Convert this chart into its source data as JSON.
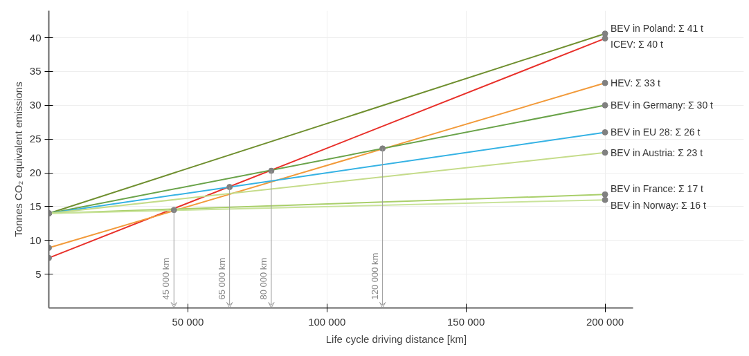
{
  "chart_data": {
    "type": "line",
    "xlabel": "Life cycle driving distance [km]",
    "ylabel": "Tonnes CO₂ equivalent emissions",
    "x": [
      0,
      200000
    ],
    "xlim": [
      0,
      210000
    ],
    "ylim": [
      0,
      44
    ],
    "xticks": [
      {
        "value": 50000,
        "label": "50 000"
      },
      {
        "value": 100000,
        "label": "100 000"
      },
      {
        "value": 150000,
        "label": "150 000"
      },
      {
        "value": 200000,
        "label": "200 000"
      }
    ],
    "yticks": [
      5,
      10,
      15,
      20,
      25,
      30,
      35,
      40
    ],
    "grid": true,
    "marker": "circle",
    "line_style": "solid",
    "series": [
      {
        "name": "BEV in Poland: Σ 41 t",
        "color": "#6f8f2f",
        "values": [
          14,
          40.6
        ]
      },
      {
        "name": "ICEV: Σ 40 t",
        "color": "#e8302a",
        "values": [
          7.4,
          39.9
        ]
      },
      {
        "name": "HEV: Σ 33 t",
        "color": "#f29a3a",
        "values": [
          8.9,
          33.3
        ]
      },
      {
        "name": "BEV in Germany: Σ 30 t",
        "color": "#6aa34a",
        "values": [
          14,
          30
        ]
      },
      {
        "name": "BEV in EU 28: Σ 26 t",
        "color": "#35b2e4",
        "values": [
          14,
          26
        ]
      },
      {
        "name": "BEV in Austria: Σ 23 t",
        "color": "#c5dc8a",
        "values": [
          14,
          23
        ]
      },
      {
        "name": "BEV in France: Σ 17 t",
        "color": "#a9cf6a",
        "values": [
          14,
          16.8
        ]
      },
      {
        "name": "BEV in Norway: Σ 16 t",
        "color": "#c9e39a",
        "values": [
          14,
          16
        ]
      }
    ],
    "annotations": [
      {
        "text": "45 000 km",
        "x": 45000,
        "y": 14.5
      },
      {
        "text": "65 000 km",
        "x": 65000,
        "y": 17.9
      },
      {
        "text": "80 000 km",
        "x": 80000,
        "y": 20.3
      },
      {
        "text": "120 000 km",
        "x": 120000,
        "y": 23.6
      }
    ]
  }
}
